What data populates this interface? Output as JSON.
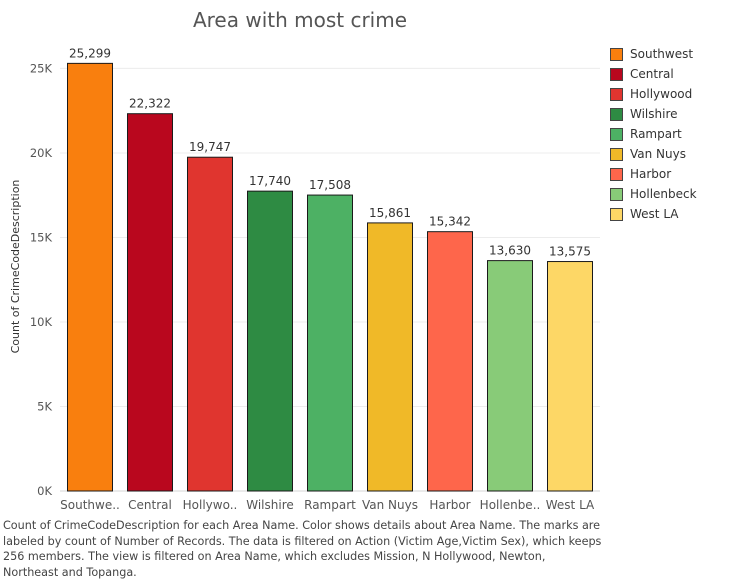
{
  "chart_data": {
    "type": "bar",
    "title": "Area with most crime",
    "xlabel": "",
    "ylabel": "Count of CrimeCodeDescription",
    "ylim": [
      0,
      26800
    ],
    "yticks": [
      0,
      5000,
      10000,
      15000,
      20000,
      25000
    ],
    "ytick_labels": [
      "0K",
      "5K",
      "10K",
      "15K",
      "20K",
      "25K"
    ],
    "grid": true,
    "legend_position": "right",
    "categories": [
      "Southwe..",
      "Central",
      "Hollywo..",
      "Wilshire",
      "Rampart",
      "Van Nuys",
      "Harbor",
      "Hollenbe..",
      "West LA"
    ],
    "values": [
      25299,
      22322,
      19747,
      17740,
      17508,
      15861,
      15342,
      13630,
      13575
    ],
    "value_labels": [
      "25,299",
      "22,322",
      "19,747",
      "17,740",
      "17,508",
      "15,861",
      "15,342",
      "13,630",
      "13,575"
    ],
    "colors": [
      "#f97f0e",
      "#b9071e",
      "#e0352f",
      "#2e8b43",
      "#4db164",
      "#f0b928",
      "#fe664b",
      "#88cb78",
      "#fdd766"
    ],
    "legend": [
      {
        "label": "Southwest",
        "color": "#f97f0e"
      },
      {
        "label": "Central",
        "color": "#b9071e"
      },
      {
        "label": "Hollywood",
        "color": "#e0352f"
      },
      {
        "label": "Wilshire",
        "color": "#2e8b43"
      },
      {
        "label": "Rampart",
        "color": "#4db164"
      },
      {
        "label": "Van Nuys",
        "color": "#f0b928"
      },
      {
        "label": "Harbor",
        "color": "#fe664b"
      },
      {
        "label": "Hollenbeck",
        "color": "#88cb78"
      },
      {
        "label": "West LA",
        "color": "#fdd766"
      }
    ]
  },
  "caption": "Count of CrimeCodeDescription for each Area Name.  Color shows details about Area Name.  The marks are labeled by count of Number of Records. The data is filtered on Action (Victim Age,Victim Sex), which keeps 256 members. The view is filtered on Area Name, which excludes Mission, N Hollywood, Newton, Northeast and Topanga."
}
